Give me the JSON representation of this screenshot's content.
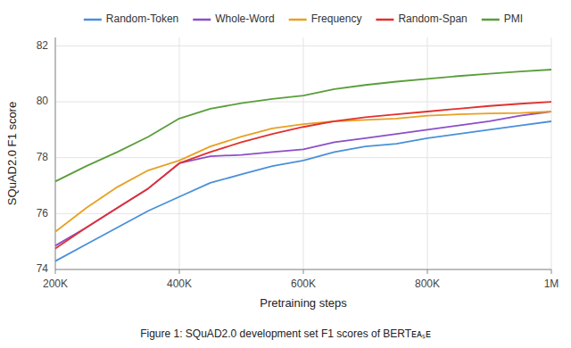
{
  "chart_data": {
    "type": "line",
    "xlabel": "Pretraining steps",
    "ylabel": "SQuAD2.0 F1 score",
    "caption": "Figure 1: SQuAD2.0 development set F1 scores of BERTᴇᴀₛᴇ",
    "x": [
      200000,
      250000,
      300000,
      350000,
      400000,
      450000,
      500000,
      550000,
      600000,
      650000,
      700000,
      750000,
      800000,
      850000,
      900000,
      950000,
      1000000
    ],
    "series": [
      {
        "name": "Random-Token",
        "color": "#4a90d9",
        "values": [
          74.3,
          74.9,
          75.5,
          76.1,
          76.6,
          77.1,
          77.4,
          77.7,
          77.9,
          78.2,
          78.4,
          78.5,
          78.7,
          78.85,
          79.0,
          79.15,
          79.3
        ]
      },
      {
        "name": "Whole-Word",
        "color": "#8b4fc8",
        "values": [
          74.85,
          75.5,
          76.2,
          76.9,
          77.8,
          78.05,
          78.1,
          78.2,
          78.3,
          78.55,
          78.7,
          78.85,
          79.0,
          79.15,
          79.3,
          79.5,
          79.65
        ]
      },
      {
        "name": "Frequency",
        "color": "#e8a020",
        "values": [
          75.35,
          76.2,
          76.95,
          77.55,
          77.9,
          78.4,
          78.75,
          79.05,
          79.2,
          79.3,
          79.35,
          79.4,
          79.5,
          79.55,
          79.58,
          79.6,
          79.65
        ]
      },
      {
        "name": "Random-Span",
        "color": "#e03030",
        "values": [
          74.75,
          75.5,
          76.2,
          76.9,
          77.8,
          78.2,
          78.55,
          78.85,
          79.1,
          79.3,
          79.45,
          79.55,
          79.65,
          79.75,
          79.85,
          79.93,
          80.0
        ]
      },
      {
        "name": "PMI",
        "color": "#5a9e3a",
        "values": [
          77.15,
          77.7,
          78.2,
          78.75,
          79.4,
          79.75,
          79.95,
          80.1,
          80.22,
          80.45,
          80.6,
          80.72,
          80.82,
          80.92,
          81.0,
          81.08,
          81.15
        ]
      }
    ],
    "xlim": [
      200000,
      1000000
    ],
    "xticks": [
      {
        "value": 200000,
        "label": "200K"
      },
      {
        "value": 400000,
        "label": "400K"
      },
      {
        "value": 600000,
        "label": "600K"
      },
      {
        "value": 800000,
        "label": "800K"
      },
      {
        "value": 1000000,
        "label": "1M"
      }
    ],
    "ylim": [
      74,
      82.3
    ],
    "yticks": [
      74,
      76,
      78,
      80,
      82
    ],
    "grid": true,
    "legend": "top"
  }
}
